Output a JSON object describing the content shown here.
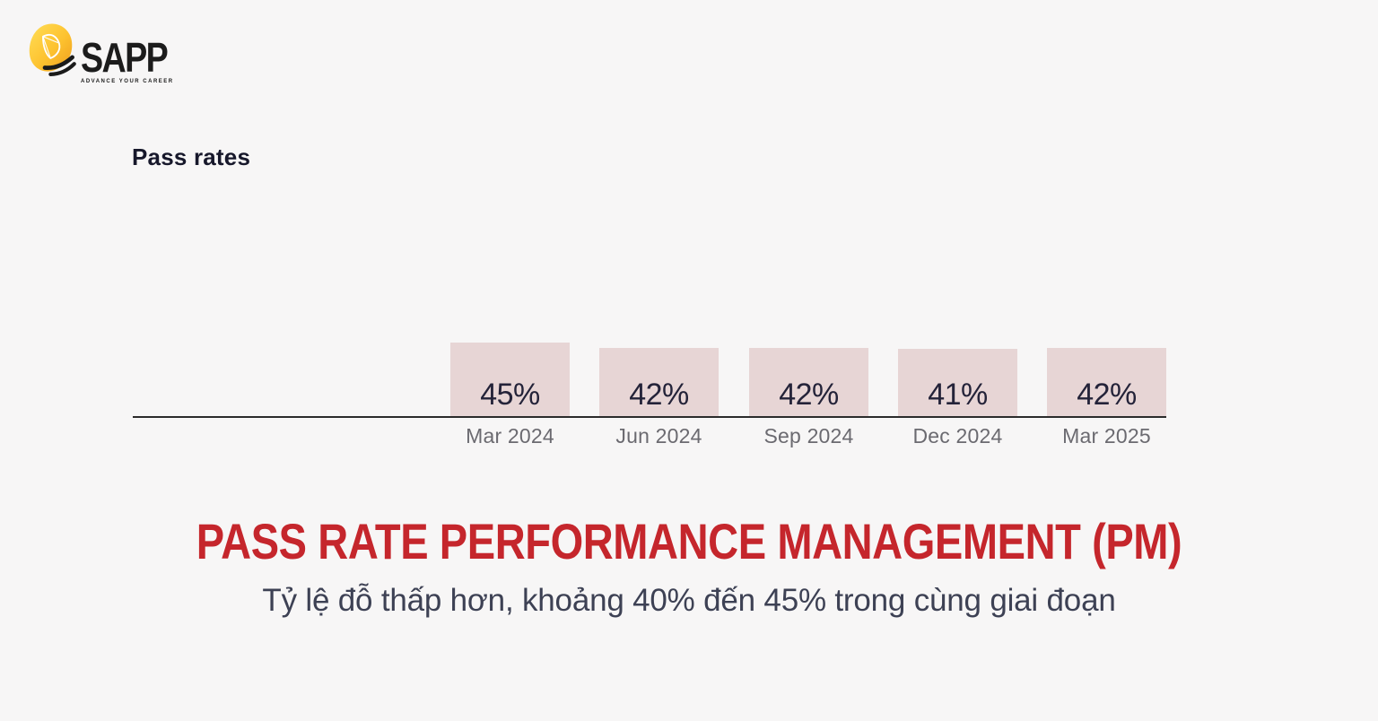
{
  "brand": {
    "name": "SAPP",
    "tagline": "ADVANCE YOUR CAREER"
  },
  "chart_data": {
    "type": "bar",
    "title": "Pass rates",
    "categories": [
      "Mar 2024",
      "Jun 2024",
      "Sep 2024",
      "Dec 2024",
      "Mar 2025"
    ],
    "values": [
      45,
      42,
      42,
      41,
      42
    ],
    "value_labels": [
      "45%",
      "42%",
      "42%",
      "41%",
      "42%"
    ],
    "xlabel": "",
    "ylabel": "",
    "ylim": [
      0,
      45
    ],
    "grid": false,
    "legend_position": "none",
    "bar_color": "#e7d5d5",
    "axis_line": "bottom-only"
  },
  "footer": {
    "title": "PASS RATE PERFORMANCE MANAGEMENT (PM)",
    "subtitle": "Tỷ lệ đỗ thấp hơn, khoảng 40% đến 45% trong cùng giai đoạn"
  },
  "colors": {
    "background": "#f7f6f6",
    "heading_text": "#17182b",
    "axis": "#2b2b2b",
    "bar_fill": "#e7d5d5",
    "value_text": "#242339",
    "category_text": "#6b6a70",
    "title_red": "#c5262c",
    "subtitle_navy": "#3d4154",
    "logo_yellow": "#ffd84d",
    "logo_orange": "#ef9d1e"
  }
}
